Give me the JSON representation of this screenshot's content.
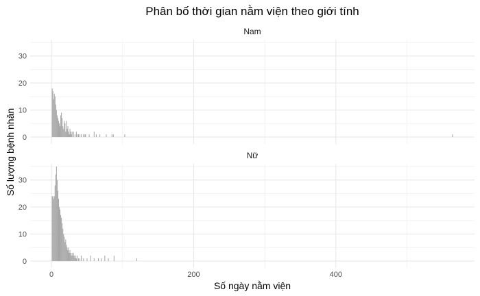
{
  "chart_data": {
    "type": "bar",
    "title": "Phân bố thời gian nằm viện theo giới tính",
    "xlabel": "Số ngày nằm viện",
    "ylabel": "Số lượng bệnh nhân",
    "xlim": [
      -30,
      595
    ],
    "ylim": [
      0,
      35
    ],
    "x_ticks": [
      0,
      200,
      400
    ],
    "y_ticks": [
      0,
      10,
      20,
      30
    ],
    "grid": true,
    "bin_width": 1,
    "colors": {
      "bar": "#a6a6a6",
      "grid": "#e6e6e6"
    },
    "facets": [
      {
        "label": "Nam",
        "bins": [
          {
            "x": 1,
            "count": 18
          },
          {
            "x": 2,
            "count": 17
          },
          {
            "x": 3,
            "count": 14
          },
          {
            "x": 4,
            "count": 16
          },
          {
            "x": 5,
            "count": 15
          },
          {
            "x": 6,
            "count": 12
          },
          {
            "x": 7,
            "count": 10
          },
          {
            "x": 8,
            "count": 8
          },
          {
            "x": 9,
            "count": 7
          },
          {
            "x": 10,
            "count": 6
          },
          {
            "x": 11,
            "count": 5
          },
          {
            "x": 12,
            "count": 4
          },
          {
            "x": 13,
            "count": 8
          },
          {
            "x": 14,
            "count": 9
          },
          {
            "x": 15,
            "count": 7
          },
          {
            "x": 16,
            "count": 4
          },
          {
            "x": 17,
            "count": 3
          },
          {
            "x": 18,
            "count": 6
          },
          {
            "x": 19,
            "count": 5
          },
          {
            "x": 20,
            "count": 2
          },
          {
            "x": 21,
            "count": 6
          },
          {
            "x": 22,
            "count": 3
          },
          {
            "x": 23,
            "count": 4
          },
          {
            "x": 24,
            "count": 2
          },
          {
            "x": 25,
            "count": 1
          },
          {
            "x": 26,
            "count": 3
          },
          {
            "x": 27,
            "count": 2
          },
          {
            "x": 28,
            "count": 1
          },
          {
            "x": 29,
            "count": 2
          },
          {
            "x": 31,
            "count": 2
          },
          {
            "x": 33,
            "count": 1
          },
          {
            "x": 35,
            "count": 2
          },
          {
            "x": 36,
            "count": 1
          },
          {
            "x": 38,
            "count": 1
          },
          {
            "x": 40,
            "count": 1
          },
          {
            "x": 42,
            "count": 1
          },
          {
            "x": 45,
            "count": 1
          },
          {
            "x": 47,
            "count": 1
          },
          {
            "x": 48,
            "count": 1
          },
          {
            "x": 53,
            "count": 1
          },
          {
            "x": 60,
            "count": 2
          },
          {
            "x": 63,
            "count": 1
          },
          {
            "x": 68,
            "count": 1
          },
          {
            "x": 77,
            "count": 1
          },
          {
            "x": 85,
            "count": 1
          },
          {
            "x": 87,
            "count": 1
          },
          {
            "x": 103,
            "count": 1
          },
          {
            "x": 564,
            "count": 1
          }
        ]
      },
      {
        "label": "Nữ",
        "bins": [
          {
            "x": 1,
            "count": 24
          },
          {
            "x": 2,
            "count": 24
          },
          {
            "x": 3,
            "count": 23
          },
          {
            "x": 4,
            "count": 24
          },
          {
            "x": 5,
            "count": 28
          },
          {
            "x": 6,
            "count": 32
          },
          {
            "x": 7,
            "count": 35
          },
          {
            "x": 8,
            "count": 30
          },
          {
            "x": 9,
            "count": 26
          },
          {
            "x": 10,
            "count": 23
          },
          {
            "x": 11,
            "count": 20
          },
          {
            "x": 12,
            "count": 19
          },
          {
            "x": 13,
            "count": 17
          },
          {
            "x": 14,
            "count": 16
          },
          {
            "x": 15,
            "count": 14
          },
          {
            "x": 16,
            "count": 12
          },
          {
            "x": 17,
            "count": 10
          },
          {
            "x": 18,
            "count": 9
          },
          {
            "x": 19,
            "count": 7
          },
          {
            "x": 20,
            "count": 8
          },
          {
            "x": 21,
            "count": 6
          },
          {
            "x": 22,
            "count": 5
          },
          {
            "x": 23,
            "count": 4
          },
          {
            "x": 24,
            "count": 5
          },
          {
            "x": 25,
            "count": 3
          },
          {
            "x": 26,
            "count": 4
          },
          {
            "x": 27,
            "count": 3
          },
          {
            "x": 28,
            "count": 2
          },
          {
            "x": 29,
            "count": 3
          },
          {
            "x": 30,
            "count": 2
          },
          {
            "x": 31,
            "count": 3
          },
          {
            "x": 32,
            "count": 2
          },
          {
            "x": 33,
            "count": 1
          },
          {
            "x": 34,
            "count": 2
          },
          {
            "x": 35,
            "count": 1
          },
          {
            "x": 36,
            "count": 2
          },
          {
            "x": 38,
            "count": 1
          },
          {
            "x": 40,
            "count": 1
          },
          {
            "x": 42,
            "count": 2
          },
          {
            "x": 45,
            "count": 1
          },
          {
            "x": 50,
            "count": 1
          },
          {
            "x": 55,
            "count": 2
          },
          {
            "x": 60,
            "count": 1
          },
          {
            "x": 66,
            "count": 1
          },
          {
            "x": 70,
            "count": 1
          },
          {
            "x": 75,
            "count": 2
          },
          {
            "x": 80,
            "count": 1
          },
          {
            "x": 88,
            "count": 2
          },
          {
            "x": 120,
            "count": 1
          }
        ]
      }
    ]
  }
}
